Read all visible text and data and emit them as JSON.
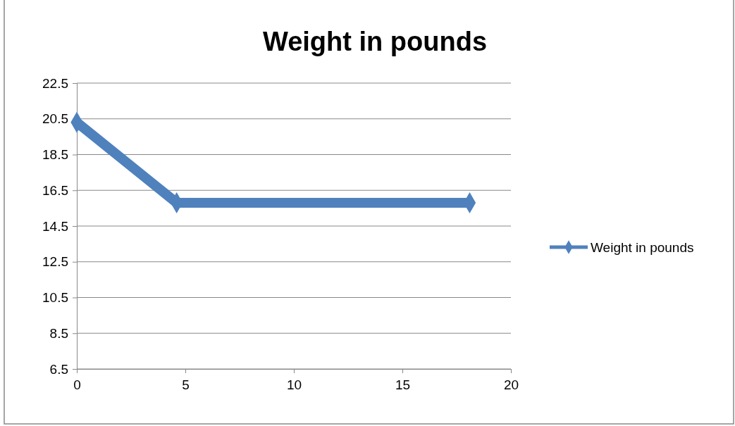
{
  "chart_data": {
    "type": "line",
    "title": "Weight in pounds",
    "series": [
      {
        "name": "Weight in pounds",
        "color": "#4f81bd",
        "x": [
          0,
          4.6,
          18.1
        ],
        "values": [
          20.3,
          15.8,
          15.8
        ]
      }
    ],
    "xlim": [
      0,
      20
    ],
    "xticks": [
      0,
      5,
      10,
      15,
      20
    ],
    "ylim": [
      6.5,
      22.5
    ],
    "yticks": [
      6.5,
      8.5,
      10.5,
      12.5,
      14.5,
      16.5,
      18.5,
      20.5,
      22.5
    ],
    "grid": "y",
    "legend": "right",
    "marker": "diamond"
  }
}
